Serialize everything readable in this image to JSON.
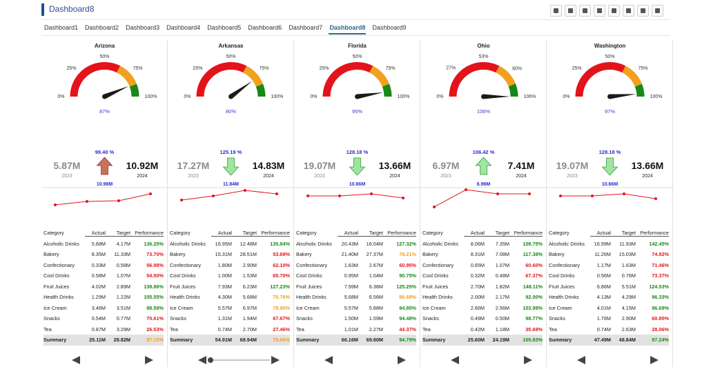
{
  "header": {
    "title": "Dashboard8"
  },
  "tabs": {
    "items": [
      "Dashboard1",
      "Dashboard2",
      "Dashboard3",
      "Dashboard4",
      "Dashboard5",
      "Dashboard6",
      "Dashboard7",
      "Dashboard8",
      "Dashboard9"
    ],
    "active": 7
  },
  "status_colors": {
    "good": "#168a16",
    "warn": "#f2a01e",
    "bad": "#e3131b"
  },
  "columns": [
    "Category",
    "Actual",
    "Target",
    "Performance"
  ],
  "panels": [
    {
      "name": "Arizona",
      "gauge": {
        "ticks": [
          {
            "value": 0,
            "label": "0%"
          },
          {
            "value": 25,
            "label": "25%"
          },
          {
            "value": 50,
            "label": "50%"
          },
          {
            "value": 75,
            "label": "75%"
          },
          {
            "value": 100,
            "label": "100%"
          }
        ],
        "value": 87,
        "value_label": "87%",
        "bands": [
          {
            "to": 65,
            "color": "#e3131b"
          },
          {
            "to": 88,
            "color": "#f2a01e"
          },
          {
            "to": 100,
            "color": "#168a16"
          }
        ]
      },
      "kpi": {
        "percent": "99.40 %",
        "previous": "5.87M",
        "previous_year": "2023",
        "current": "10.92M",
        "current_year": "2024",
        "target": "10.98M",
        "arrow": "up",
        "arrow_color": "#c9735c"
      },
      "sparkline": [
        3,
        8,
        9,
        19
      ],
      "table": {
        "rows": [
          [
            "Alcoholic Drinks",
            "5.68M",
            "4.17M",
            "136.25%"
          ],
          [
            "Bakery",
            "8.35M",
            "11.33M",
            "73.70%"
          ],
          [
            "Confectionary",
            "0.33M",
            "0.58M",
            "56.98%"
          ],
          [
            "Cool Drinks",
            "0.58M",
            "1.07M",
            "54.50%"
          ],
          [
            "Fruit Juices",
            "4.02M",
            "2.89M",
            "138.86%"
          ],
          [
            "Health Drinks",
            "1.29M",
            "1.22M",
            "105.55%"
          ],
          [
            "Ice Cream",
            "3.46M",
            "3.51M",
            "98.59%"
          ],
          [
            "Snacks",
            "0.54M",
            "0.77M",
            "70.61%"
          ],
          [
            "Tea",
            "0.87M",
            "3.29M",
            "26.53%"
          ]
        ],
        "status": [
          "good",
          "bad",
          "bad",
          "bad",
          "good",
          "good",
          "good",
          "bad",
          "bad"
        ],
        "summary": [
          "Summary",
          "25.11M",
          "28.82M",
          "87.15%"
        ],
        "summary_status": "warn"
      }
    },
    {
      "name": "Arkansas",
      "gauge": {
        "ticks": [
          {
            "value": 0,
            "label": "0%"
          },
          {
            "value": 25,
            "label": "25%"
          },
          {
            "value": 50,
            "label": "50%"
          },
          {
            "value": 75,
            "label": "75%"
          },
          {
            "value": 100,
            "label": "100%"
          }
        ],
        "value": 80,
        "value_label": "80%",
        "bands": [
          {
            "to": 65,
            "color": "#e3131b"
          },
          {
            "to": 88,
            "color": "#f2a01e"
          },
          {
            "to": 100,
            "color": "#168a16"
          }
        ]
      },
      "kpi": {
        "percent": "125.19 %",
        "previous": "17.27M",
        "previous_year": "2023",
        "current": "14.83M",
        "current_year": "2024",
        "target": "11.84M",
        "arrow": "down",
        "arrow_color": "#9fe59f"
      },
      "sparkline": [
        10,
        16,
        24,
        19
      ],
      "table": {
        "rows": [
          [
            "Alcoholic Drinks",
            "16.95M",
            "12.48M",
            "135.84%"
          ],
          [
            "Bakery",
            "15.31M",
            "28.51M",
            "53.69%"
          ],
          [
            "Confectionary",
            "1.80M",
            "2.90M",
            "62.10%"
          ],
          [
            "Cool Drinks",
            "1.00M",
            "1.53M",
            "65.70%"
          ],
          [
            "Fruit Juices",
            "7.93M",
            "6.23M",
            "127.23%"
          ],
          [
            "Health Drinks",
            "4.30M",
            "5.68M",
            "75.76%"
          ],
          [
            "Ice Cream",
            "5.57M",
            "6.97M",
            "79.90%"
          ],
          [
            "Snacks",
            "1.31M",
            "1.94M",
            "67.67%"
          ],
          [
            "Tea",
            "0.74M",
            "2.70M",
            "27.46%"
          ]
        ],
        "status": [
          "good",
          "bad",
          "bad",
          "bad",
          "good",
          "warn",
          "warn",
          "bad",
          "bad"
        ],
        "summary": [
          "Summary",
          "54.91M",
          "68.94M",
          "79.66%"
        ],
        "summary_status": "warn"
      }
    },
    {
      "name": "Florida",
      "gauge": {
        "ticks": [
          {
            "value": 0,
            "label": "0%"
          },
          {
            "value": 25,
            "label": "25%"
          },
          {
            "value": 50,
            "label": "50%"
          },
          {
            "value": 75,
            "label": "75%"
          },
          {
            "value": 100,
            "label": "100%"
          }
        ],
        "value": 95,
        "value_label": "95%",
        "bands": [
          {
            "to": 65,
            "color": "#e3131b"
          },
          {
            "to": 88,
            "color": "#f2a01e"
          },
          {
            "to": 100,
            "color": "#168a16"
          }
        ]
      },
      "kpi": {
        "percent": "128.18 %",
        "previous": "19.07M",
        "previous_year": "2023",
        "current": "13.66M",
        "current_year": "2024",
        "target": "10.66M",
        "arrow": "down",
        "arrow_color": "#9fe59f"
      },
      "sparkline": [
        16,
        16,
        19,
        13
      ],
      "table": {
        "rows": [
          [
            "Alcoholic Drinks",
            "20.43M",
            "16.04M",
            "127.32%"
          ],
          [
            "Bakery",
            "21.40M",
            "27.37M",
            "78.21%"
          ],
          [
            "Confectionary",
            "1.63M",
            "2.67M",
            "60.95%"
          ],
          [
            "Cool Drinks",
            "0.95M",
            "1.04M",
            "90.75%"
          ],
          [
            "Fruit Juices",
            "7.99M",
            "6.38M",
            "125.25%"
          ],
          [
            "Health Drinks",
            "5.68M",
            "6.56M",
            "86.68%"
          ],
          [
            "Ice Cream",
            "5.57M",
            "5.88M",
            "94.85%"
          ],
          [
            "Snacks",
            "1.50M",
            "1.59M",
            "94.48%"
          ],
          [
            "Tea",
            "1.01M",
            "2.27M",
            "44.37%"
          ]
        ],
        "status": [
          "good",
          "warn",
          "bad",
          "good",
          "good",
          "warn",
          "good",
          "good",
          "bad"
        ],
        "summary": [
          "Summary",
          "66.16M",
          "69.80M",
          "94.79%"
        ],
        "summary_status": "good"
      }
    },
    {
      "name": "Ohio",
      "gauge": {
        "ticks": [
          {
            "value": 0,
            "label": "0%"
          },
          {
            "value": 27,
            "label": "27%"
          },
          {
            "value": 53,
            "label": "53%"
          },
          {
            "value": 80,
            "label": "80%"
          },
          {
            "value": 106,
            "label": "106%"
          }
        ],
        "value": 106,
        "value_label": "106%",
        "bands": [
          {
            "to": 69,
            "color": "#e3131b"
          },
          {
            "to": 93,
            "color": "#f2a01e"
          },
          {
            "to": 106,
            "color": "#168a16"
          }
        ]
      },
      "kpi": {
        "percent": "106.42 %",
        "previous": "6.97M",
        "previous_year": "2023",
        "current": "7.41M",
        "current_year": "2024",
        "target": "6.96M",
        "arrow": "up",
        "arrow_color": "#9fe59f"
      },
      "sparkline": [
        0,
        25,
        19,
        19
      ],
      "table": {
        "rows": [
          [
            "Alcoholic Drinks",
            "8.06M",
            "7.35M",
            "109.75%"
          ],
          [
            "Bakery",
            "8.31M",
            "7.08M",
            "117.38%"
          ],
          [
            "Confectionary",
            "0.65M",
            "1.07M",
            "60.60%"
          ],
          [
            "Cool Drinks",
            "0.32M",
            "0.48M",
            "67.37%"
          ],
          [
            "Fruit Juices",
            "2.70M",
            "1.82M",
            "148.11%"
          ],
          [
            "Health Drinks",
            "2.00M",
            "2.17M",
            "92.00%"
          ],
          [
            "Ice Cream",
            "2.66M",
            "2.56M",
            "103.99%"
          ],
          [
            "Snacks",
            "0.49M",
            "0.50M",
            "98.77%"
          ],
          [
            "Tea",
            "0.42M",
            "1.18M",
            "35.69%"
          ]
        ],
        "status": [
          "good",
          "good",
          "bad",
          "bad",
          "good",
          "good",
          "good",
          "good",
          "bad"
        ],
        "summary": [
          "Summary",
          "25.60M",
          "24.19M",
          "105.83%"
        ],
        "summary_status": "good"
      }
    },
    {
      "name": "Washington",
      "gauge": {
        "ticks": [
          {
            "value": 0,
            "label": "0%"
          },
          {
            "value": 25,
            "label": "25%"
          },
          {
            "value": 50,
            "label": "50%"
          },
          {
            "value": 75,
            "label": "75%"
          },
          {
            "value": 100,
            "label": "100%"
          }
        ],
        "value": 97,
        "value_label": "97%",
        "bands": [
          {
            "to": 65,
            "color": "#e3131b"
          },
          {
            "to": 88,
            "color": "#f2a01e"
          },
          {
            "to": 100,
            "color": "#168a16"
          }
        ]
      },
      "kpi": {
        "percent": "128.18 %",
        "previous": "19.07M",
        "previous_year": "2023",
        "current": "13.66M",
        "current_year": "2024",
        "target": "10.66M",
        "arrow": "down",
        "arrow_color": "#9fe59f"
      },
      "sparkline": [
        16,
        16,
        19,
        12
      ],
      "table": {
        "rows": [
          [
            "Alcoholic Drinks",
            "16.99M",
            "11.93M",
            "142.45%"
          ],
          [
            "Bakery",
            "11.26M",
            "15.03M",
            "74.92%"
          ],
          [
            "Confectionary",
            "1.17M",
            "1.63M",
            "71.46%"
          ],
          [
            "Cool Drinks",
            "0.56M",
            "0.76M",
            "73.37%"
          ],
          [
            "Fruit Juices",
            "6.86M",
            "5.51M",
            "124.53%"
          ],
          [
            "Health Drinks",
            "4.13M",
            "4.29M",
            "96.33%"
          ],
          [
            "Ice Cream",
            "4.01M",
            "4.15M",
            "96.69%"
          ],
          [
            "Snacks",
            "1.76M",
            "2.90M",
            "60.85%"
          ],
          [
            "Tea",
            "0.74M",
            "2.63M",
            "28.06%"
          ]
        ],
        "status": [
          "good",
          "bad",
          "bad",
          "bad",
          "good",
          "good",
          "good",
          "bad",
          "bad"
        ],
        "summary": [
          "Summary",
          "47.49M",
          "48.84M",
          "97.24%"
        ],
        "summary_status": "good"
      }
    }
  ]
}
